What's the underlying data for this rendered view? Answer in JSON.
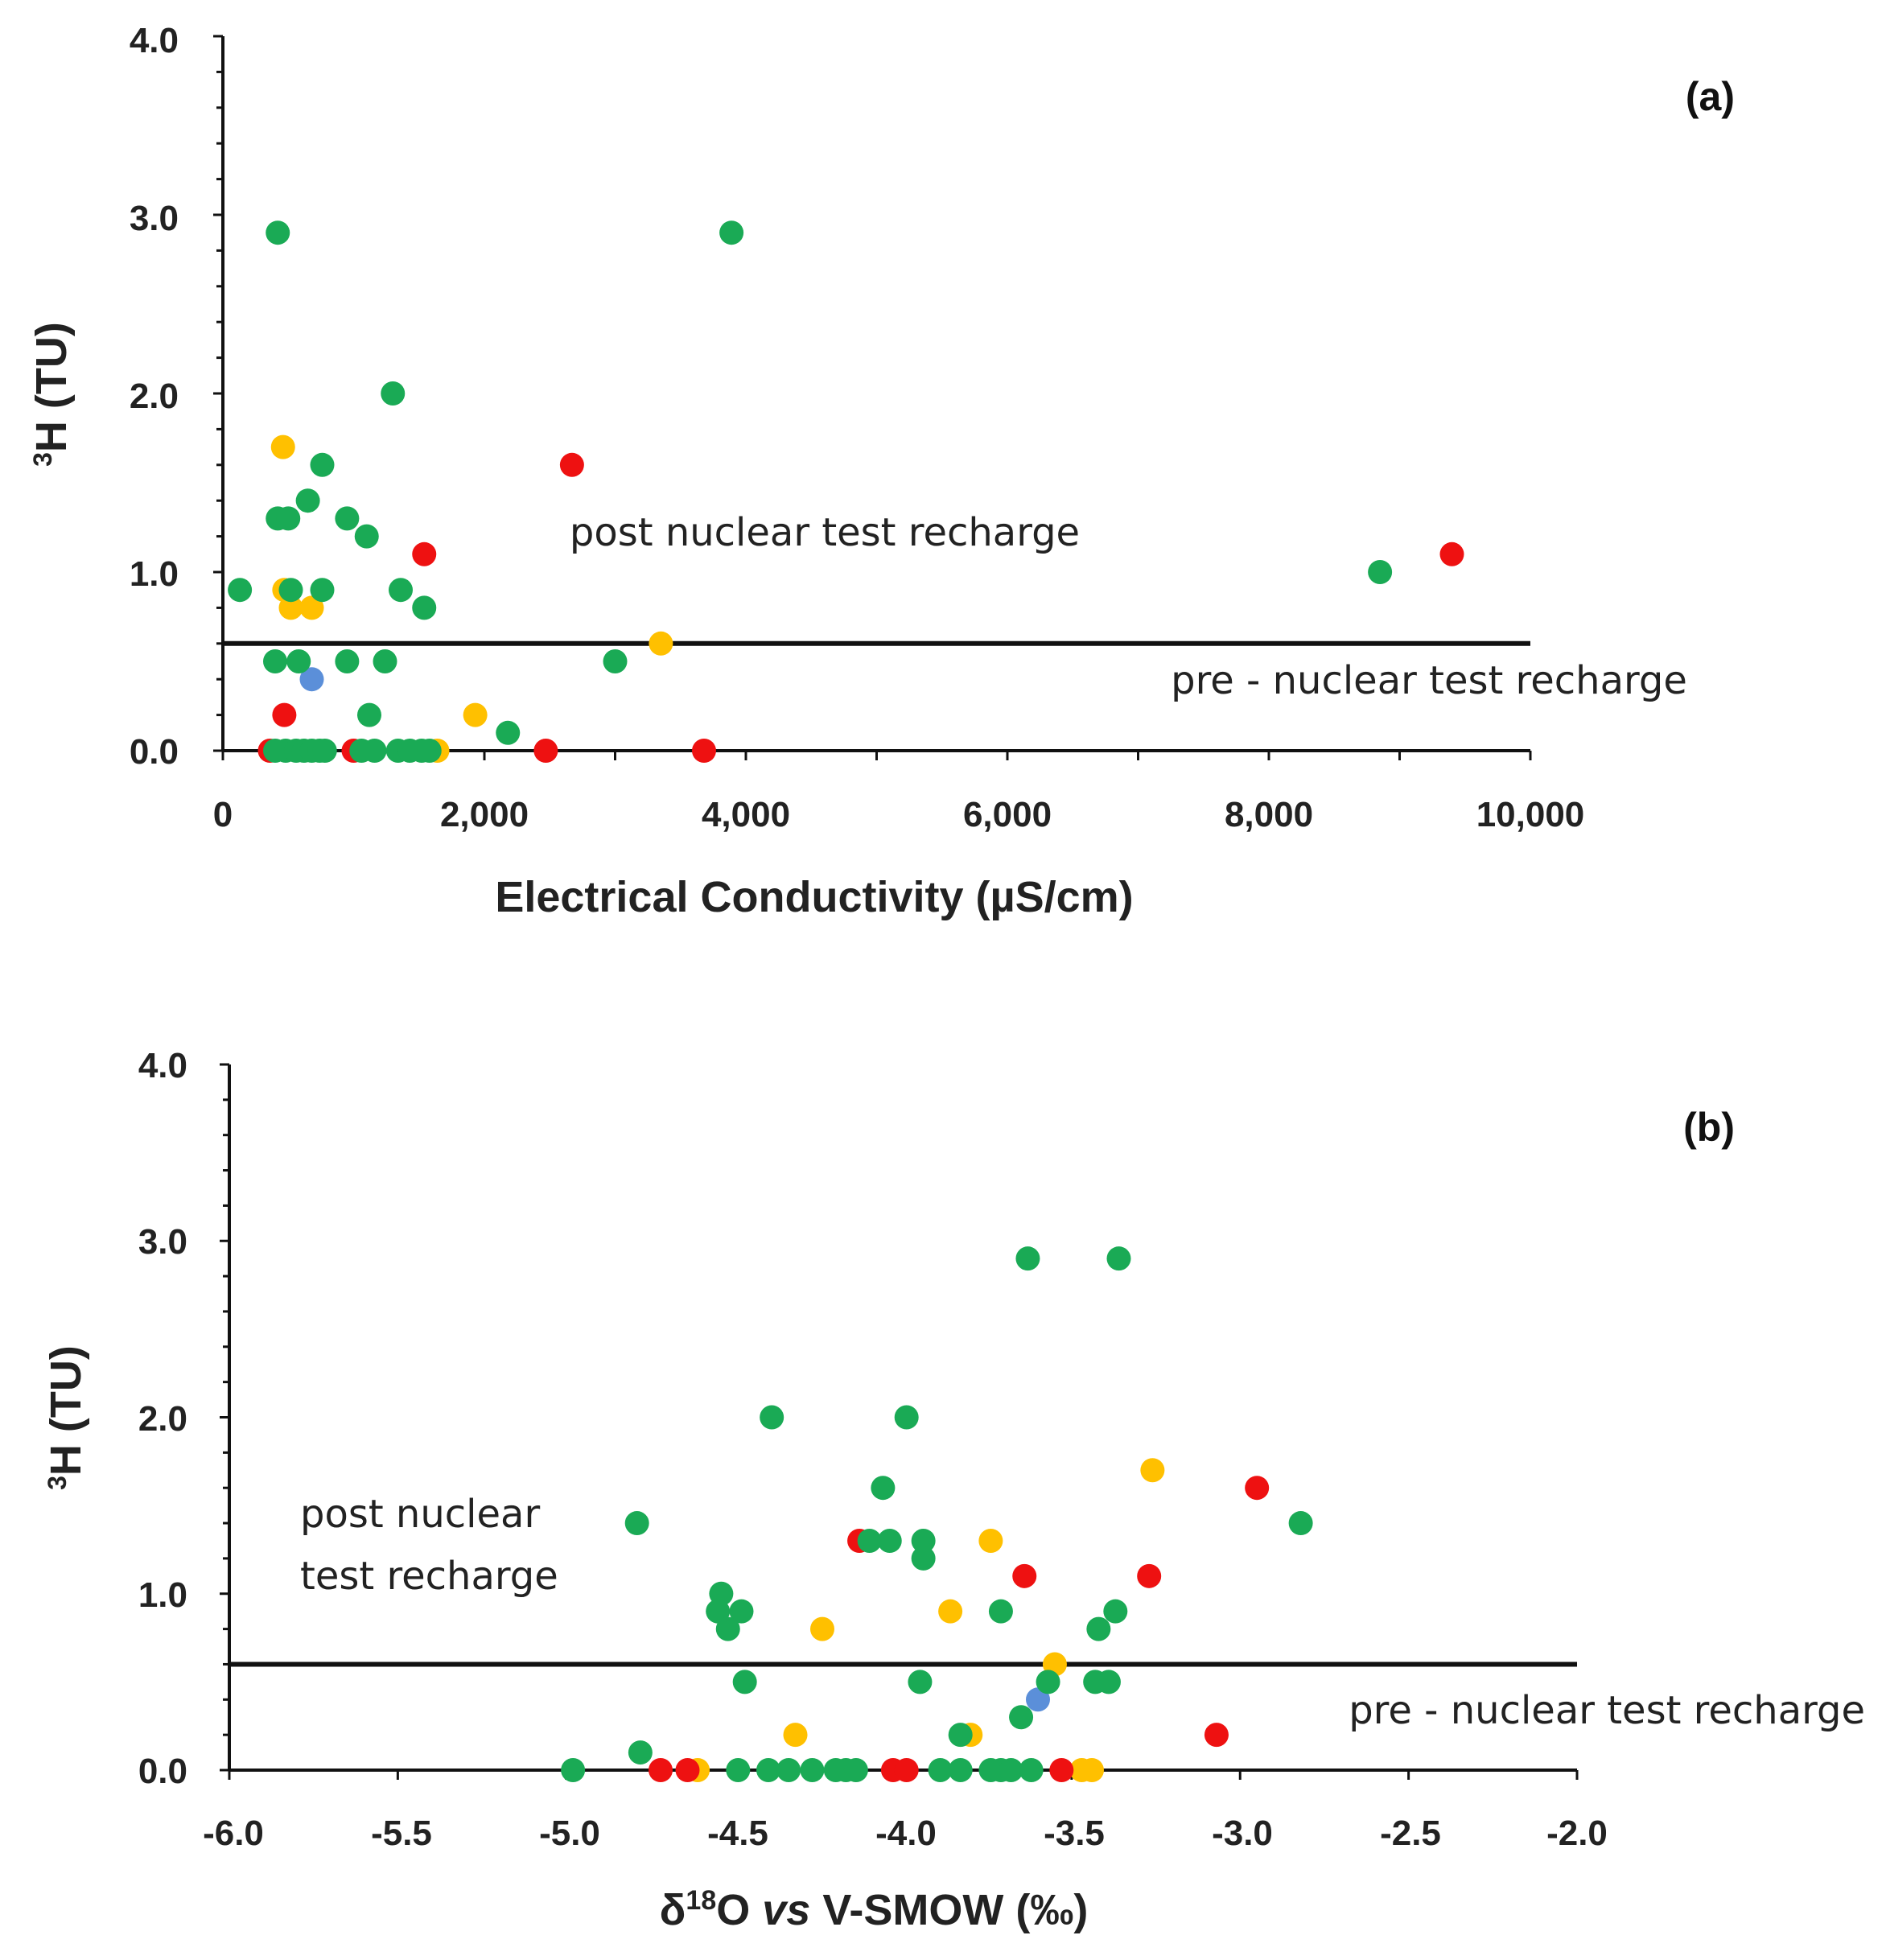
{
  "colors": {
    "green": "#1aaa55",
    "red": "#ee1111",
    "yellow": "#ffc000",
    "blue": "#5b8fd9"
  },
  "chart_data": [
    {
      "type": "scatter",
      "panel_label": "(a)",
      "xlabel": "Electrical Conductivity (µS/cm)",
      "ylabel": {
        "sup": "3",
        "main": "H (TU)"
      },
      "xlim": [
        0,
        10000
      ],
      "ylim": [
        0,
        4.0
      ],
      "xticks": [
        "0",
        "2,000",
        "4,000",
        "6,000",
        "8,000",
        "10,000"
      ],
      "yticks": [
        "0.0",
        "1.0",
        "2.0",
        "3.0",
        "4.0"
      ],
      "threshold": 0.6,
      "annotations": {
        "above": "post nuclear test recharge",
        "below": "pre - nuclear test recharge"
      },
      "series": [
        {
          "name": "green",
          "points": [
            [
              420,
              2.9
            ],
            [
              3890,
              2.9
            ],
            [
              1300,
              2.0
            ],
            [
              760,
              1.6
            ],
            [
              650,
              1.4
            ],
            [
              420,
              1.3
            ],
            [
              500,
              1.3
            ],
            [
              950,
              1.3
            ],
            [
              1100,
              1.2
            ],
            [
              130,
              0.9
            ],
            [
              520,
              0.9
            ],
            [
              760,
              0.9
            ],
            [
              1360,
              0.9
            ],
            [
              1540,
              0.8
            ],
            [
              8850,
              1.0
            ],
            [
              400,
              0.5
            ],
            [
              580,
              0.5
            ],
            [
              950,
              0.5
            ],
            [
              1240,
              0.5
            ],
            [
              3000,
              0.5
            ],
            [
              1120,
              0.2
            ],
            [
              2180,
              0.1
            ],
            [
              400,
              0
            ],
            [
              480,
              0
            ],
            [
              560,
              0
            ],
            [
              620,
              0
            ],
            [
              680,
              0
            ],
            [
              740,
              0
            ],
            [
              780,
              0
            ],
            [
              1060,
              0
            ],
            [
              1160,
              0
            ],
            [
              1340,
              0
            ],
            [
              1430,
              0
            ],
            [
              1520,
              0
            ],
            [
              1580,
              0
            ]
          ]
        },
        {
          "name": "red",
          "points": [
            [
              2670,
              1.6
            ],
            [
              1540,
              1.1
            ],
            [
              9400,
              1.1
            ],
            [
              470,
              0.2
            ],
            [
              360,
              0
            ],
            [
              1000,
              0
            ],
            [
              2470,
              0
            ],
            [
              3680,
              0
            ]
          ]
        },
        {
          "name": "yellow",
          "points": [
            [
              460,
              1.7
            ],
            [
              470,
              0.9
            ],
            [
              520,
              0.8
            ],
            [
              680,
              0.8
            ],
            [
              3350,
              0.6
            ],
            [
              1930,
              0.2
            ],
            [
              1640,
              0
            ]
          ]
        },
        {
          "name": "blue",
          "points": [
            [
              680,
              0.4
            ]
          ]
        }
      ]
    },
    {
      "type": "scatter",
      "panel_label": "(b)",
      "xlabel": {
        "pre": "δ",
        "sup": "18",
        "post": "O ",
        "italic": "vs",
        "tail": " V-SMOW (‰)"
      },
      "ylabel": {
        "sup": "3",
        "main": "H (TU)"
      },
      "xlim": [
        -6.0,
        -2.0
      ],
      "ylim": [
        0,
        4.0
      ],
      "xticks": [
        "-6.0",
        "-5.5",
        "-5.0",
        "-4.5",
        "-4.0",
        "-3.5",
        "-3.0",
        "-2.5",
        "-2.0"
      ],
      "yticks": [
        "0.0",
        "1.0",
        "2.0",
        "3.0",
        "4.0"
      ],
      "threshold": 0.6,
      "annotations": {
        "above_line1": "post nuclear",
        "above_line2": "test recharge",
        "below": "pre - nuclear test recharge"
      },
      "series": [
        {
          "name": "green",
          "points": [
            [
              -3.63,
              2.9
            ],
            [
              -3.36,
              2.9
            ],
            [
              -4.39,
              2.0
            ],
            [
              -3.99,
              2.0
            ],
            [
              -4.06,
              1.6
            ],
            [
              -4.79,
              1.4
            ],
            [
              -2.82,
              1.4
            ],
            [
              -4.1,
              1.3
            ],
            [
              -4.04,
              1.3
            ],
            [
              -3.94,
              1.3
            ],
            [
              -3.94,
              1.2
            ],
            [
              -4.54,
              1.0
            ],
            [
              -4.55,
              0.9
            ],
            [
              -4.48,
              0.9
            ],
            [
              -3.71,
              0.9
            ],
            [
              -3.37,
              0.9
            ],
            [
              -4.52,
              0.8
            ],
            [
              -3.42,
              0.8
            ],
            [
              -4.47,
              0.5
            ],
            [
              -3.95,
              0.5
            ],
            [
              -3.57,
              0.5
            ],
            [
              -3.43,
              0.5
            ],
            [
              -3.39,
              0.5
            ],
            [
              -3.65,
              0.3
            ],
            [
              -3.83,
              0.2
            ],
            [
              -4.78,
              0.1
            ],
            [
              -4.98,
              0
            ],
            [
              -4.49,
              0
            ],
            [
              -4.4,
              0
            ],
            [
              -4.34,
              0
            ],
            [
              -4.27,
              0
            ],
            [
              -4.2,
              0
            ],
            [
              -4.17,
              0
            ],
            [
              -4.14,
              0
            ],
            [
              -3.89,
              0
            ],
            [
              -3.83,
              0
            ],
            [
              -3.74,
              0
            ],
            [
              -3.71,
              0
            ],
            [
              -3.68,
              0
            ],
            [
              -3.62,
              0
            ]
          ]
        },
        {
          "name": "red",
          "points": [
            [
              -2.95,
              1.6
            ],
            [
              -4.13,
              1.3
            ],
            [
              -3.64,
              1.1
            ],
            [
              -3.27,
              1.1
            ],
            [
              -3.07,
              0.2
            ],
            [
              -4.72,
              0
            ],
            [
              -4.64,
              0
            ],
            [
              -4.03,
              0
            ],
            [
              -3.99,
              0
            ],
            [
              -3.53,
              0
            ]
          ]
        },
        {
          "name": "yellow",
          "points": [
            [
              -3.26,
              1.7
            ],
            [
              -3.74,
              1.3
            ],
            [
              -3.86,
              0.9
            ],
            [
              -4.24,
              0.8
            ],
            [
              -3.55,
              0.6
            ],
            [
              -4.32,
              0.2
            ],
            [
              -3.8,
              0.2
            ],
            [
              -4.61,
              0
            ],
            [
              -3.47,
              0
            ],
            [
              -3.44,
              0
            ]
          ]
        },
        {
          "name": "blue",
          "points": [
            [
              -3.6,
              0.4
            ]
          ]
        }
      ]
    }
  ]
}
